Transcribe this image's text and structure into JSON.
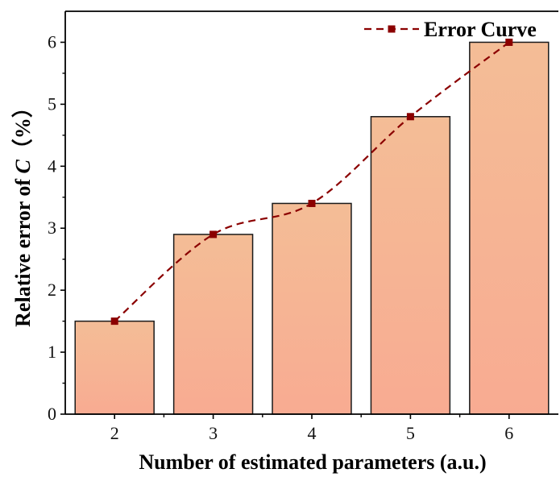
{
  "chart_data": {
    "type": "bar",
    "categories": [
      "2",
      "3",
      "4",
      "5",
      "6"
    ],
    "values": [
      1.5,
      2.9,
      3.4,
      4.8,
      6.0
    ],
    "line_series": {
      "name": "Error Curve",
      "values": [
        1.5,
        2.9,
        3.4,
        4.8,
        6.0
      ],
      "color": "#8b0000",
      "style": "dashed",
      "marker": "square"
    },
    "xlabel": "Number of estimated parameters (a.u.)",
    "ylabel_parts": [
      "Relative error of ",
      "C",
      "（%）"
    ],
    "ylim": [
      0,
      6.5
    ],
    "yticks": [
      0,
      1,
      2,
      3,
      4,
      5,
      6
    ],
    "legend_position": "top-right",
    "grid": false,
    "colors": {
      "bar_fill_top": "#f4bd96",
      "bar_fill_bottom": "#f8ab92",
      "bar_stroke": "#1a1a1a",
      "axis": "#000000"
    }
  }
}
